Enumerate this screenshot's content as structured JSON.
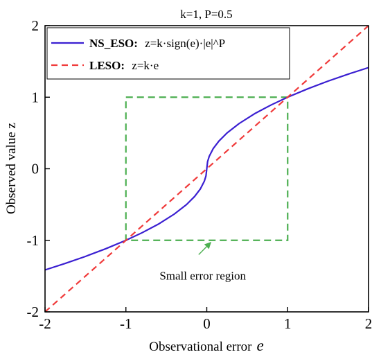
{
  "chart_data": {
    "type": "line",
    "title": "k=1, P=0.5",
    "xlabel_text": "Observational error",
    "xlabel_symbol": "e",
    "ylabel": "Observed value z",
    "xlim": [
      -2,
      2
    ],
    "ylim": [
      -2,
      2
    ],
    "x_ticks": [
      -2,
      -1,
      0,
      1,
      2
    ],
    "y_ticks": [
      -2,
      -1,
      0,
      1,
      2
    ],
    "x_tick_labels": [
      "-2",
      "-1",
      "0",
      "1",
      "2"
    ],
    "y_tick_labels": [
      "-2",
      "-1",
      "0",
      "1",
      "2"
    ],
    "grid": false,
    "legend_position": "top-left",
    "series": [
      {
        "name_bold": "NS_ESO:",
        "name_formula": "z=k·sign(e)·|e|^P",
        "color": "#3a1fd1",
        "style": "solid",
        "x": [
          -2.0,
          -1.75,
          -1.5,
          -1.25,
          -1.0,
          -0.8,
          -0.6,
          -0.4,
          -0.25,
          -0.15,
          -0.08,
          -0.03,
          -0.01,
          0.0,
          0.01,
          0.03,
          0.08,
          0.15,
          0.25,
          0.4,
          0.6,
          0.8,
          1.0,
          1.25,
          1.5,
          1.75,
          2.0
        ],
        "y": [
          -1.414,
          -1.323,
          -1.225,
          -1.118,
          -1.0,
          -0.894,
          -0.775,
          -0.632,
          -0.5,
          -0.387,
          -0.283,
          -0.173,
          -0.1,
          0.0,
          0.1,
          0.173,
          0.283,
          0.387,
          0.5,
          0.632,
          0.775,
          0.894,
          1.0,
          1.118,
          1.225,
          1.323,
          1.414
        ]
      },
      {
        "name_bold": "LESO:",
        "name_formula": "z=k·e",
        "color": "#f03a3a",
        "style": "dashed",
        "x": [
          -2,
          2
        ],
        "y": [
          -2,
          2
        ]
      }
    ],
    "region_box": {
      "x": [
        -1,
        1
      ],
      "y": [
        -1,
        1
      ],
      "color": "#4caf50",
      "style": "dashed"
    },
    "annotation": {
      "text": "Small error region",
      "arrow_from": [
        -0.1,
        -1.2
      ],
      "arrow_to": [
        0.05,
        -1.0
      ],
      "text_at": [
        -0.05,
        -1.55
      ]
    }
  }
}
